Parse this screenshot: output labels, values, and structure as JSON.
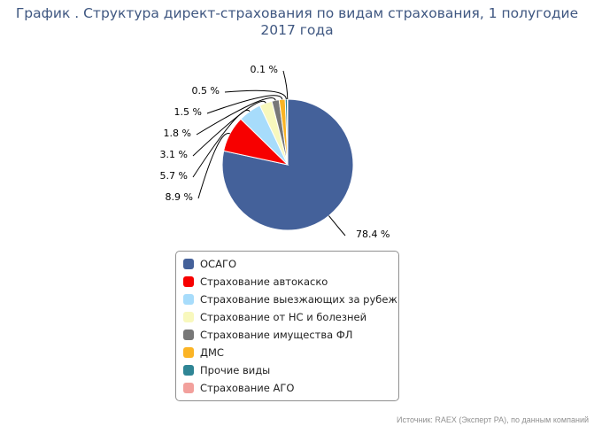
{
  "title_line1": "График . Структура директ-страхования по видам страхования, 1 полугодие",
  "title_line2": "2017 года",
  "source": "Источник: RAEX (Эксперт РА), по данным компаний",
  "chart_data": {
    "type": "pie",
    "categories": [
      "ОСАГО",
      "Страхование автокаско",
      "Страхование выезжающих за рубеж",
      "Страхование от НС и болезней",
      "Страхование имущества ФЛ",
      "ДМС",
      "Прочие виды",
      "Страхование АГО"
    ],
    "values": [
      78.4,
      8.9,
      5.7,
      3.1,
      1.8,
      1.5,
      0.5,
      0.1
    ],
    "labels": [
      "78.4 %",
      "8.9 %",
      "5.7 %",
      "3.1 %",
      "1.8 %",
      "1.5 %",
      "0.5 %",
      "0.1 %"
    ],
    "colors": [
      "#44619a",
      "#f70000",
      "#a7dcfb",
      "#f8f8bd",
      "#777777",
      "#fbb425",
      "#2f8595",
      "#f2a09c"
    ],
    "legend_position": "bottom"
  }
}
